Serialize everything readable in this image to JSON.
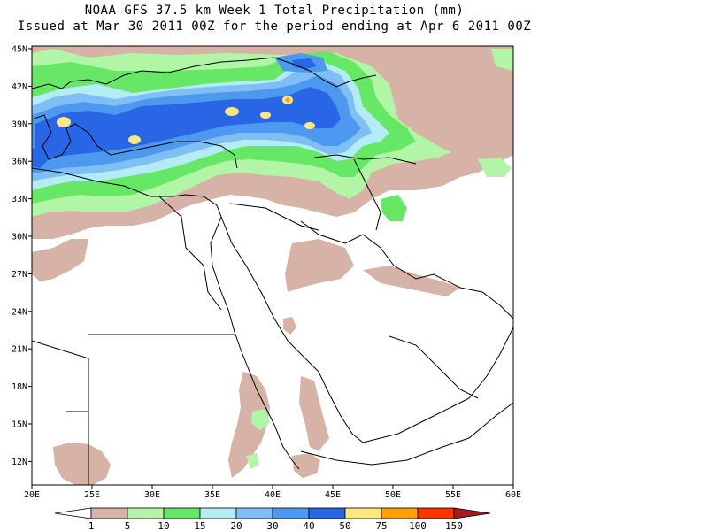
{
  "title": {
    "line1": "NOAA GFS 37.5 km Week 1 Total Precipitation (mm)",
    "line2": "Issued at Mar 30 2011 00Z for the period ending at Apr 6 2011 00Z"
  },
  "map": {
    "lat_ticks": [
      "45N",
      "42N",
      "39N",
      "36N",
      "33N",
      "30N",
      "27N",
      "24N",
      "21N",
      "18N",
      "15N",
      "12N"
    ],
    "lon_ticks": [
      "20E",
      "25E",
      "30E",
      "35E",
      "40E",
      "45E",
      "50E",
      "55E",
      "60E"
    ],
    "lon_range": [
      20,
      60
    ],
    "lat_range": [
      10,
      45
    ]
  },
  "colorbar": {
    "labels": [
      "1",
      "5",
      "10",
      "15",
      "20",
      "30",
      "40",
      "50",
      "75",
      "100",
      "150"
    ],
    "colors": [
      "#ffffff",
      "#d6b3a6",
      "#b3f5a6",
      "#66e866",
      "#b3ecf5",
      "#80bff5",
      "#4d99f0",
      "#2966e6",
      "#ffe680",
      "#ff9f00",
      "#ff3300",
      "#a61a1a"
    ]
  },
  "legend_colors": {
    "light_brown": "#d6b3a6",
    "light_green": "#b3f5a6",
    "green": "#66e866",
    "light_blue": "#b3ecf5",
    "sky_blue": "#80bff5",
    "blue": "#4d99f0",
    "dark_blue": "#2966e6",
    "yellow": "#ffe680"
  }
}
